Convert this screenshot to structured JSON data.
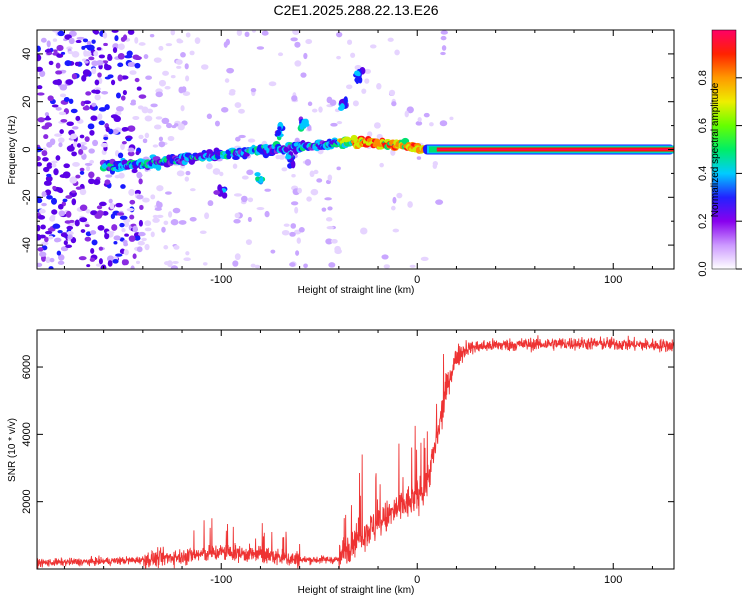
{
  "chart_data": [
    {
      "type": "heatmap",
      "title": "C2E1.2025.288.22.13.E26",
      "xlabel": "Height of straight line (km)",
      "ylabel": "Frequency (Hz)",
      "xlim": [
        -194,
        131
      ],
      "ylim": [
        -50,
        50
      ],
      "x_ticks": [
        -100,
        0,
        100
      ],
      "y_ticks": [
        -40,
        -20,
        0,
        20,
        40
      ],
      "colorbar": {
        "label": "Normalized spectral amplitude",
        "range": [
          0,
          1
        ],
        "ticks": [
          "0.0",
          "0.2",
          "0.4",
          "0.6",
          "0.8"
        ]
      },
      "features": {
        "signal_line_center_hz": 0,
        "signal_strong_start_km": 10,
        "noise_dense_until_km": -140
      }
    },
    {
      "type": "line",
      "xlabel": "Height of straight line (km)",
      "ylabel": "SNR (10 * v/v)",
      "xlim": [
        -194,
        131
      ],
      "ylim": [
        0,
        7100
      ],
      "x_ticks": [
        -100,
        0,
        100
      ],
      "y_ticks": [
        2000,
        4000,
        6000
      ],
      "series": [
        {
          "name": "SNR",
          "color": "#ee3333",
          "x": [
            -194,
            -180,
            -160,
            -140,
            -120,
            -100,
            -80,
            -60,
            -40,
            -35,
            -30,
            -25,
            -20,
            -15,
            -10,
            -5,
            0,
            5,
            10,
            15,
            20,
            25,
            30,
            40,
            60,
            80,
            100,
            120,
            131
          ],
          "y": [
            180,
            200,
            230,
            270,
            380,
            500,
            420,
            270,
            280,
            700,
            1000,
            1150,
            1300,
            1550,
            1800,
            1950,
            2150,
            2600,
            3800,
            5400,
            6300,
            6550,
            6600,
            6650,
            6680,
            6700,
            6690,
            6650,
            6640
          ]
        }
      ]
    }
  ]
}
